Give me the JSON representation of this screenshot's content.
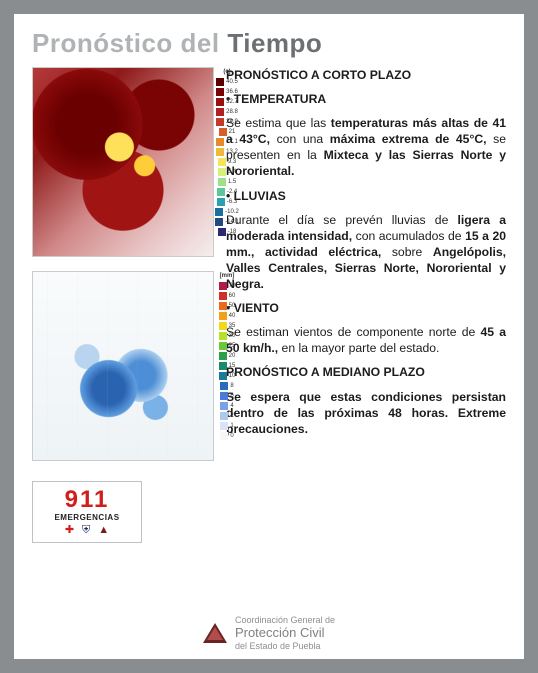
{
  "title": {
    "light": "Pronóstico del ",
    "dark": "Tiempo"
  },
  "temp_scale": {
    "unit": "(c)",
    "ticks": [
      "40.5",
      "36.6",
      "32.7",
      "28.8",
      "24.9",
      "21",
      "17.1",
      "13.2",
      "9.3",
      "5.4",
      "1.5",
      "-2.4",
      "-6.3",
      "-10.2",
      "-14.1",
      "-18"
    ],
    "colors": [
      "#5a0000",
      "#7a0404",
      "#9a1010",
      "#b02222",
      "#c43a2a",
      "#d6602a",
      "#e68a2a",
      "#f2b83a",
      "#f8e25a",
      "#d6f07a",
      "#9ee08a",
      "#5ac69a",
      "#2aa0b0",
      "#1a6ea0",
      "#204a80",
      "#2a2a70"
    ]
  },
  "rain_scale": {
    "unit": "[mm]",
    "ticks": [
      "70",
      "60",
      "50",
      "40",
      "35",
      "30",
      "25",
      "20",
      "15",
      "10",
      "8",
      "6",
      "4",
      "2",
      "1",
      "0"
    ],
    "colors": [
      "#b01a4a",
      "#d0302a",
      "#e86a1a",
      "#f2a01a",
      "#f2d81a",
      "#b8e22a",
      "#6ac83a",
      "#2aa04a",
      "#1a8a6a",
      "#1a7a9a",
      "#2a6ac0",
      "#4a7ad8",
      "#7aa0e8",
      "#b0c8f0",
      "#d8e4f6",
      "#f4f8fb"
    ]
  },
  "text": {
    "h1": "PRONÓSTICO A CORTO PLAZO",
    "temp_h": "• TEMPERATURA",
    "temp_p_1": "Se estima que las ",
    "temp_p_b1": "temperaturas más altas de 41 a 43°C,",
    "temp_p_2": " con una ",
    "temp_p_b2": "máxima extrema de 45°C,",
    "temp_p_3": " se presenten en la ",
    "temp_p_b3": "Mixteca y las Sierras Norte y Nororiental.",
    "rain_h": "• LLUVIAS",
    "rain_p_1": "Durante el día se prevén lluvias de ",
    "rain_p_b1": "ligera a moderada intensidad,",
    "rain_p_2": " con acumulados de ",
    "rain_p_b2": "15 a 20 mm., actividad eléctrica,",
    "rain_p_3": " sobre ",
    "rain_p_b3": "Angelópolis, Valles Centrales, Sierras Norte, Nororiental y Negra.",
    "wind_h": "• VIENTO",
    "wind_p_1": "Se estiman vientos de componente norte de ",
    "wind_p_b1": "45 a 50 km/h.,",
    "wind_p_2": " en la mayor parte del estado.",
    "h2": "PRONÓSTICO A MEDIANO PLAZO",
    "med_p": "Se espera que estas condiciones persistan dentro de las próximas 48 horas. Extreme precauciones."
  },
  "badge": {
    "num": "911",
    "label": "EMERGENCIAS"
  },
  "footer": {
    "l1": "Coordinación General de",
    "l2": "Protección Civil",
    "l3": "del Estado de Puebla"
  }
}
